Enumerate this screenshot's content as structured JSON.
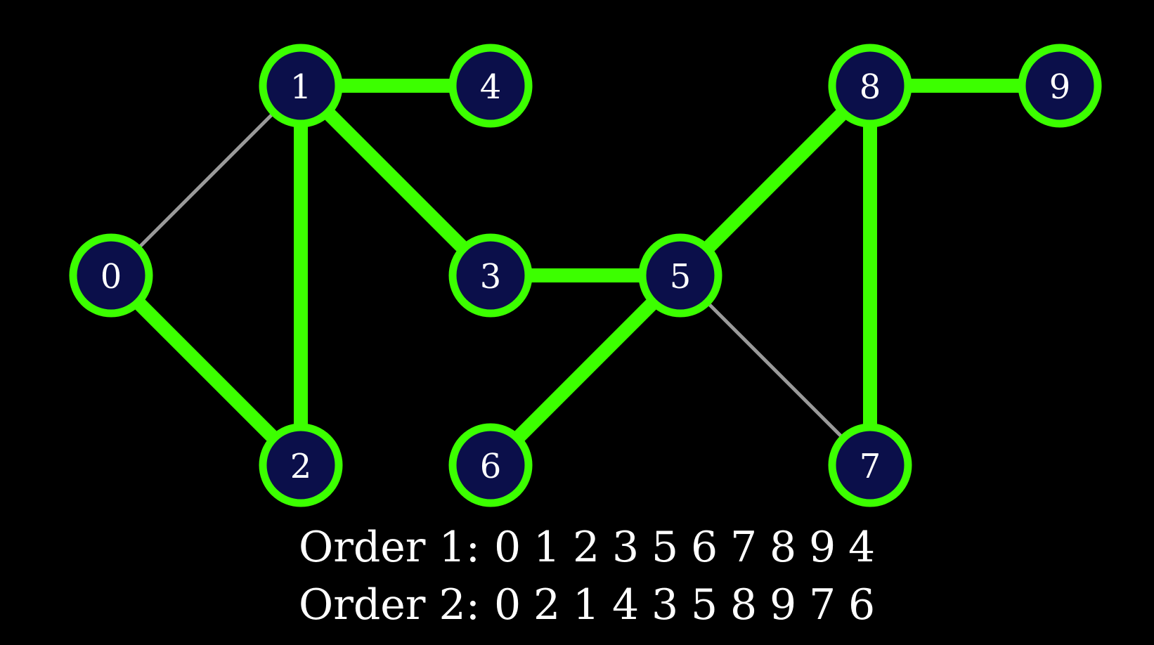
{
  "colors": {
    "background": "#000000",
    "node_fill": "#0b0f4a",
    "node_stroke": "#3cff00",
    "tree_edge": "#3cff00",
    "other_edge": "#9a9a9a",
    "text": "#ffffff"
  },
  "nodes": [
    {
      "id": "0",
      "label": "0",
      "row": 1,
      "col": 0
    },
    {
      "id": "1",
      "label": "1",
      "row": 0,
      "col": 1
    },
    {
      "id": "2",
      "label": "2",
      "row": 2,
      "col": 1
    },
    {
      "id": "3",
      "label": "3",
      "row": 1,
      "col": 2
    },
    {
      "id": "4",
      "label": "4",
      "row": 0,
      "col": 2
    },
    {
      "id": "5",
      "label": "5",
      "row": 1,
      "col": 3
    },
    {
      "id": "6",
      "label": "6",
      "row": 2,
      "col": 2
    },
    {
      "id": "7",
      "label": "7",
      "row": 2,
      "col": 4
    },
    {
      "id": "8",
      "label": "8",
      "row": 0,
      "col": 4
    },
    {
      "id": "9",
      "label": "9",
      "row": 0,
      "col": 5
    }
  ],
  "edges": [
    {
      "from": "0",
      "to": "1",
      "highlighted": false
    },
    {
      "from": "0",
      "to": "2",
      "highlighted": true
    },
    {
      "from": "1",
      "to": "2",
      "highlighted": true
    },
    {
      "from": "1",
      "to": "4",
      "highlighted": true
    },
    {
      "from": "1",
      "to": "3",
      "highlighted": true
    },
    {
      "from": "3",
      "to": "5",
      "highlighted": true
    },
    {
      "from": "5",
      "to": "6",
      "highlighted": true
    },
    {
      "from": "5",
      "to": "8",
      "highlighted": true
    },
    {
      "from": "5",
      "to": "7",
      "highlighted": false
    },
    {
      "from": "8",
      "to": "7",
      "highlighted": true
    },
    {
      "from": "8",
      "to": "9",
      "highlighted": true
    }
  ],
  "orders": [
    {
      "label": "Order 1:",
      "sequence": [
        "0",
        "1",
        "2",
        "3",
        "5",
        "6",
        "7",
        "8",
        "9",
        "4"
      ]
    },
    {
      "label": "Order 2:",
      "sequence": [
        "0",
        "2",
        "1",
        "4",
        "3",
        "5",
        "8",
        "9",
        "7",
        "6"
      ]
    }
  ]
}
